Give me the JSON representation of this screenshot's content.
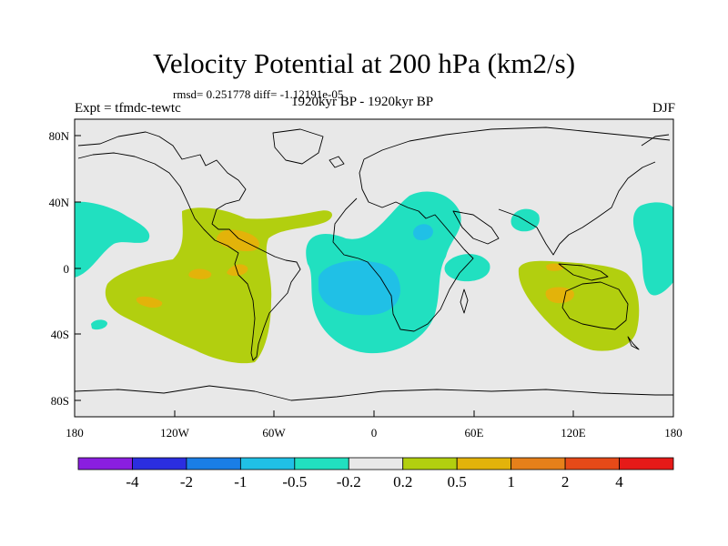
{
  "title": "Velocity Potential at 200 hPa (km2/s)",
  "stats": "rmsd= 0.251778 diff= -1.12191e-05",
  "experiment": "Expt = tfmdc-tewtc",
  "period": "1920kyr BP - 1920kyr BP",
  "season": "DJF",
  "map": {
    "background_color": "#e8e8e8",
    "lon_labels": [
      "180",
      "120W",
      "60W",
      "0",
      "60E",
      "120E",
      "180"
    ],
    "lat_labels": [
      "80N",
      "40N",
      "0",
      "40S",
      "80S"
    ]
  },
  "colorbar": {
    "colors": [
      "#8a1ee0",
      "#2b2ee0",
      "#1a7ee6",
      "#20c0e6",
      "#21e0c0",
      "#e8e8e8",
      "#b2cf0f",
      "#e3b30a",
      "#e6801a",
      "#e64a18",
      "#e61a18"
    ],
    "labels": [
      "-4",
      "-2",
      "-1",
      "-0.5",
      "-0.2",
      "0.2",
      "0.5",
      "1",
      "2",
      "4"
    ]
  },
  "chart_data": {
    "type": "heatmap",
    "title": "Velocity Potential at 200 hPa (km2/s)",
    "variable": "velocity potential",
    "level": "200 hPa",
    "units": "km2/s",
    "experiment": "tfmdc-tewtc",
    "period": "1920kyr BP - 1920kyr BP",
    "season": "DJF",
    "rmsd": 0.251778,
    "diff": -1.12191e-05,
    "x_range": [
      -180,
      180
    ],
    "y_range": [
      -90,
      90
    ],
    "x_ticks": [
      "180",
      "120W",
      "60W",
      "0",
      "60E",
      "120E",
      "180"
    ],
    "y_ticks": [
      "80N",
      "40N",
      "0",
      "40S",
      "80S"
    ],
    "contour_levels": [
      -4,
      -2,
      -1,
      -0.5,
      -0.2,
      0.2,
      0.5,
      1,
      2,
      4
    ]
  }
}
